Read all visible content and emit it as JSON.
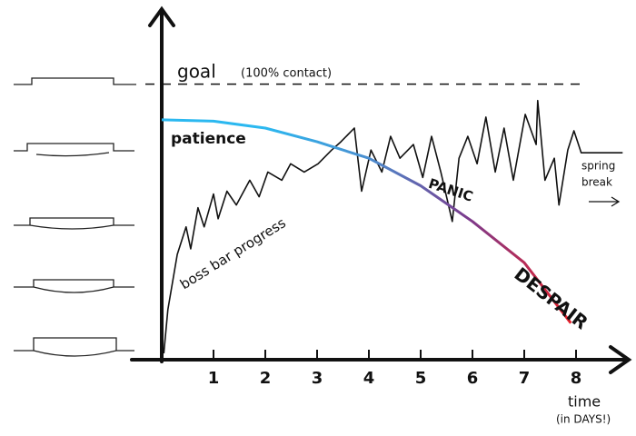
{
  "chart_data": {
    "type": "line",
    "xlabel": "time",
    "xlabel_note": "(in DAYS!)",
    "xlim": [
      0,
      9
    ],
    "ylim": [
      0,
      125
    ],
    "xticks": [
      1,
      2,
      3,
      4,
      5,
      6,
      7,
      8
    ],
    "goal": {
      "value": 100,
      "label": "goal",
      "note": "(100% contact)"
    },
    "series": [
      {
        "name": "boss bar progress",
        "color": "#111111",
        "x": [
          0.04,
          0.12,
          0.3,
          0.47,
          0.56,
          0.7,
          0.82,
          1.0,
          1.09,
          1.26,
          1.44,
          1.7,
          1.88,
          2.05,
          2.32,
          2.49,
          2.75,
          3.02,
          3.28,
          3.46,
          3.72,
          3.86,
          4.04,
          4.25,
          4.42,
          4.6,
          4.86,
          5.04,
          5.21,
          5.39,
          5.61,
          5.74,
          5.91,
          6.09,
          6.26,
          6.44,
          6.61,
          6.79,
          7.02,
          7.23,
          7.26,
          7.4,
          7.58,
          7.67,
          7.84,
          7.96,
          8.1,
          8.9
        ],
        "values": [
          2,
          18,
          38,
          48,
          40,
          55,
          48,
          60,
          51,
          61,
          56,
          65,
          59,
          68,
          65,
          71,
          68,
          71,
          76,
          79,
          84,
          61,
          76,
          68,
          81,
          73,
          78,
          66,
          81,
          68,
          50,
          73,
          81,
          71,
          88,
          68,
          84,
          65,
          89,
          78,
          94,
          65,
          73,
          56,
          76,
          83,
          75,
          75
        ]
      },
      {
        "name": "patience",
        "color": "#2bb8f0",
        "colors": [
          "#2bb8f0",
          "#2bb8f0",
          "#4a8fd0",
          "#7b3a8c",
          "#e8202a"
        ],
        "x": [
          0,
          1,
          2,
          3,
          4,
          5,
          6,
          7,
          7.9
        ],
        "values": [
          87,
          86.5,
          84,
          79,
          73,
          63,
          50,
          35,
          13
        ]
      }
    ],
    "annotations": [
      {
        "text": "PANIC",
        "color": "#7b3a8c"
      },
      {
        "text": "DESPAIR",
        "color": "#e8202a"
      },
      {
        "lines": [
          "spring",
          "break"
        ],
        "color": "#111111"
      }
    ]
  }
}
